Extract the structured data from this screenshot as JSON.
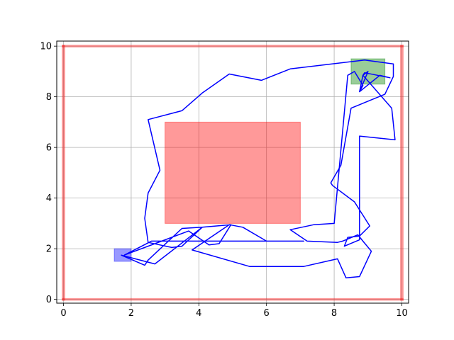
{
  "chart_data": {
    "type": "line",
    "title": "",
    "xlabel": "",
    "ylabel": "",
    "xlim": [
      -0.2,
      10.2
    ],
    "ylim": [
      -0.15,
      10.2
    ],
    "grid": true,
    "x_ticks": [
      0,
      2,
      4,
      6,
      8,
      10
    ],
    "y_ticks": [
      0,
      2,
      4,
      6,
      8,
      10
    ],
    "x_tick_labels": [
      "0",
      "2",
      "4",
      "6",
      "8",
      "10"
    ],
    "y_tick_labels": [
      "0",
      "2",
      "4",
      "6",
      "8",
      "10"
    ],
    "walls": [
      {
        "x": [
          -0.05,
          10.05
        ],
        "y": [
          -0.05,
          0.05
        ]
      },
      {
        "x": [
          -0.05,
          10.05
        ],
        "y": [
          9.95,
          10.05
        ]
      },
      {
        "x": [
          -0.05,
          0.05
        ],
        "y": [
          -0.05,
          10.05
        ]
      },
      {
        "x": [
          9.95,
          10.05
        ],
        "y": [
          -0.05,
          10.05
        ]
      }
    ],
    "obstacle": {
      "x": [
        3.0,
        7.0
      ],
      "y": [
        3.0,
        7.0
      ]
    },
    "start_region": {
      "x": [
        1.5,
        2.0
      ],
      "y": [
        1.5,
        2.0
      ]
    },
    "goal_region": {
      "x": [
        8.5,
        9.5
      ],
      "y": [
        8.5,
        9.5
      ]
    },
    "path": {
      "x": [
        1.7,
        2.7,
        4.1,
        3.5,
        3.2,
        2.5,
        2.4,
        2.5,
        2.85,
        2.5,
        3.5,
        4.1,
        4.9,
        5.85,
        6.7,
        8.9,
        9.75,
        9.75,
        9.5,
        8.5,
        8.2,
        7.9,
        7.95,
        8.6,
        9.05,
        8.75,
        8.4,
        8.3,
        8.75,
        8.75,
        9.8,
        9.7,
        8.85,
        9.0,
        8.75,
        8.85,
        8.9,
        9.65,
        9.35,
        8.75,
        8.85,
        8.6,
        8.4,
        8.0,
        7.4,
        6.7,
        7.2,
        8.1,
        8.25,
        8.7,
        8.85,
        9.1,
        8.75,
        8.35,
        8.1,
        7.1,
        6.2,
        6.1,
        5.5,
        3.8,
        4.9,
        5.3,
        6.0,
        6.9,
        7.1,
        6.75,
        5.2,
        3.3,
        2.8,
        2.6,
        1.8,
        2.7,
        3.7,
        4.3,
        4.6,
        4.95,
        4.1,
        3.5,
        2.5,
        2.4,
        1.7
      ],
      "y": [
        1.75,
        1.4,
        2.85,
        2.1,
        2.05,
        2.25,
        3.2,
        4.2,
        5.1,
        7.1,
        7.45,
        8.15,
        8.9,
        8.65,
        9.1,
        9.45,
        9.3,
        8.8,
        8.1,
        7.55,
        5.3,
        4.6,
        4.5,
        3.85,
        2.9,
        2.5,
        2.45,
        2.1,
        2.35,
        6.45,
        6.3,
        7.55,
        8.85,
        9.0,
        8.2,
        8.85,
        8.95,
        8.75,
        8.85,
        8.2,
        8.45,
        9.0,
        8.85,
        3.0,
        2.95,
        2.75,
        2.3,
        2.25,
        2.3,
        2.55,
        2.3,
        1.9,
        0.9,
        0.85,
        1.6,
        1.3,
        1.3,
        1.3,
        1.3,
        1.95,
        2.95,
        2.85,
        2.3,
        2.3,
        2.3,
        2.3,
        2.3,
        2.3,
        2.3,
        2.3,
        1.75,
        2.2,
        2.7,
        2.15,
        2.2,
        2.95,
        2.85,
        2.8,
        1.55,
        1.35,
        1.75
      ]
    }
  }
}
